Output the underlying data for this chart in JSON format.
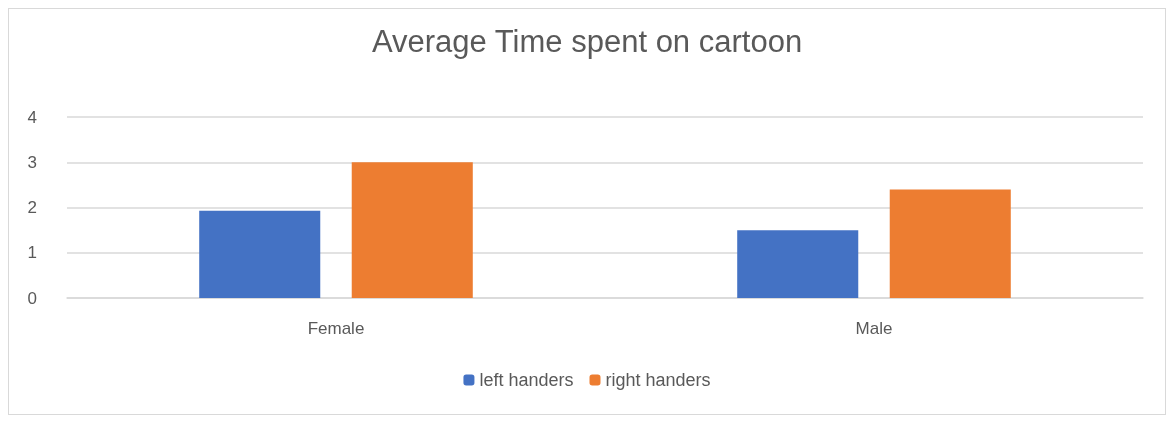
{
  "chart_data": {
    "type": "bar",
    "title": "Average Time spent on cartoon",
    "categories": [
      "Female",
      "Male"
    ],
    "series": [
      {
        "name": "left handers",
        "color": "#4472c4",
        "values": [
          1.93,
          1.5
        ]
      },
      {
        "name": "right handers",
        "color": "#ed7d31",
        "values": [
          3.0,
          2.4
        ]
      }
    ],
    "ylim": [
      0,
      4
    ],
    "yticks": [
      0,
      1,
      2,
      3,
      4
    ],
    "grid": "y",
    "legend": "bottom"
  }
}
